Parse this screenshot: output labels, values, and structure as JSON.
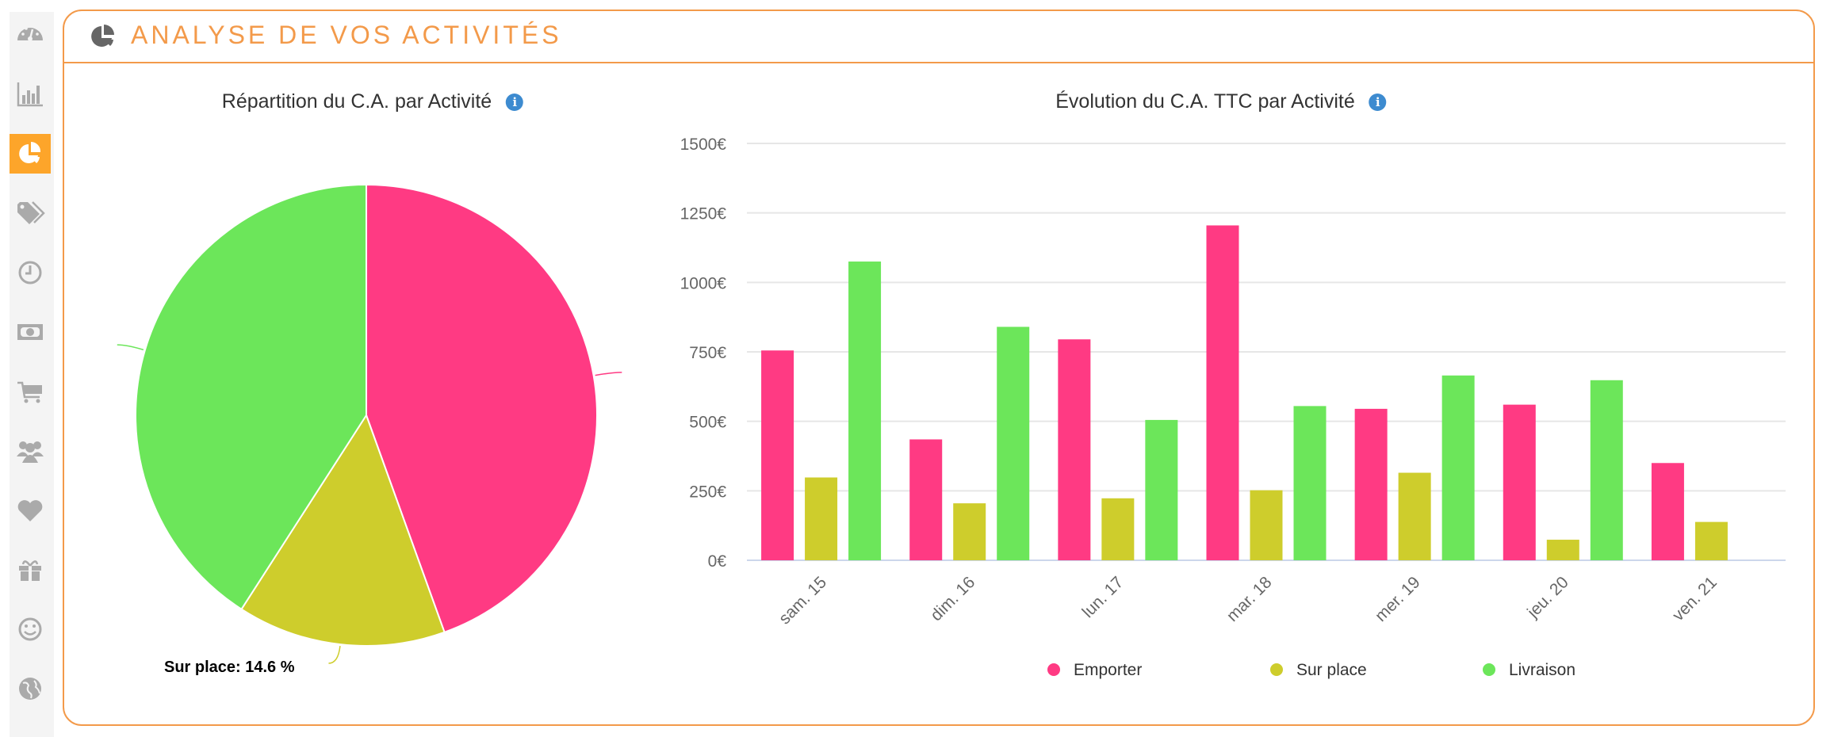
{
  "header": {
    "title": "ANALYSE DE VOS ACTIVITÉS",
    "icon": "pie-chart-icon"
  },
  "sidebar": {
    "items": [
      {
        "name": "dashboard",
        "icon": "dashboard-icon",
        "active": false
      },
      {
        "name": "statistics",
        "icon": "bar-chart-icon",
        "active": false
      },
      {
        "name": "activities",
        "icon": "pie-chart-icon",
        "active": true
      },
      {
        "name": "tags",
        "icon": "tags-icon",
        "active": false
      },
      {
        "name": "time",
        "icon": "clock-icon",
        "active": false
      },
      {
        "name": "money",
        "icon": "banknote-icon",
        "active": false
      },
      {
        "name": "cart",
        "icon": "cart-icon",
        "active": false
      },
      {
        "name": "customers",
        "icon": "users-icon",
        "active": false
      },
      {
        "name": "favorites",
        "icon": "heart-icon",
        "active": false
      },
      {
        "name": "gifts",
        "icon": "gift-icon",
        "active": false
      },
      {
        "name": "satisfaction",
        "icon": "smiley-icon",
        "active": false
      },
      {
        "name": "world",
        "icon": "globe-icon",
        "active": false
      }
    ],
    "active_color": "#fda52a"
  },
  "pie": {
    "title": "Répartition du C.A. par Activité",
    "info": "i"
  },
  "bars": {
    "title": "Évolution du C.A. TTC par Activité",
    "info": "i"
  },
  "chart_data": [
    {
      "type": "pie",
      "title": "Répartition du C.A. par Activité",
      "slices": [
        {
          "name": "Emporter",
          "value": 44.5,
          "color": "#ff3a83"
        },
        {
          "name": "Sur place",
          "value": 14.6,
          "color": "#cecd2c"
        },
        {
          "name": "Livraison",
          "value": 40.9,
          "color": "#6ce65a"
        }
      ],
      "visible_label": "Sur place: 14.6 %"
    },
    {
      "type": "bar",
      "title": "Évolution du C.A. TTC par Activité",
      "categories": [
        "sam. 15",
        "dim. 16",
        "lun. 17",
        "mar. 18",
        "mer. 19",
        "jeu. 20",
        "ven. 21"
      ],
      "series": [
        {
          "name": "Emporter",
          "color": "#ff3a83",
          "values": [
            755,
            435,
            795,
            1205,
            545,
            560,
            350
          ]
        },
        {
          "name": "Sur place",
          "color": "#cecd2c",
          "values": [
            298,
            205,
            223,
            252,
            315,
            74,
            138
          ]
        },
        {
          "name": "Livraison",
          "color": "#6ce65a",
          "values": [
            1075,
            840,
            505,
            555,
            665,
            648,
            0
          ]
        }
      ],
      "ylim": [
        0,
        1500
      ],
      "yticks": [
        "0€",
        "250€",
        "500€",
        "750€",
        "1000€",
        "1250€",
        "1500€"
      ],
      "grid": true,
      "legend": "bottom-center"
    }
  ]
}
